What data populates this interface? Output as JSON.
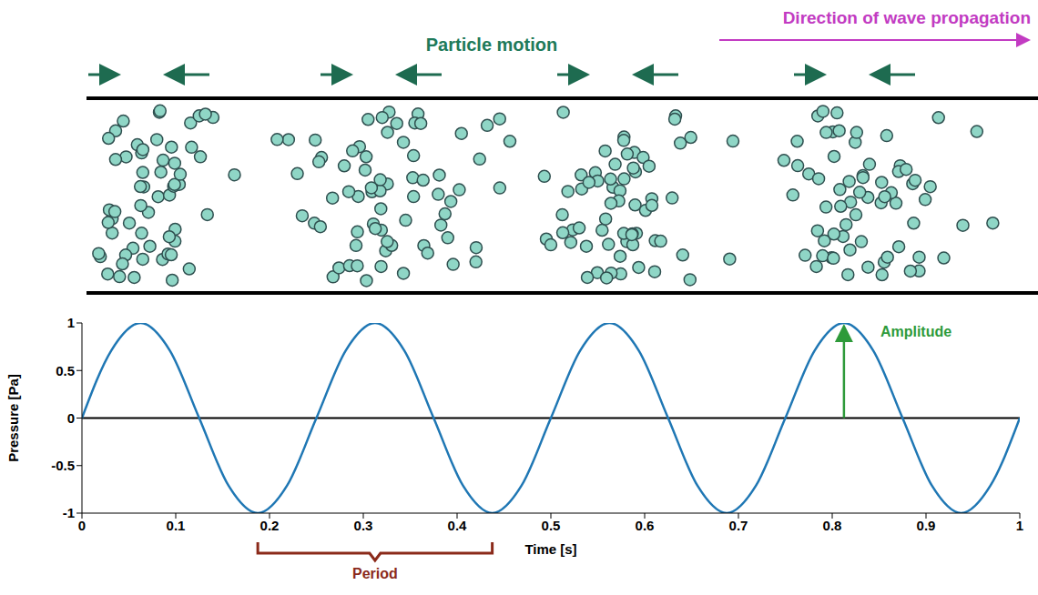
{
  "diagram": {
    "particle_motion_label": "Particle motion",
    "propagation_label": "Direction of wave propagation"
  },
  "chart_data": {
    "type": "line",
    "x_label": "Time [s]",
    "y_label": "Pressure [Pa]",
    "x": [
      0,
      0.03125,
      0.0625,
      0.09375,
      0.125,
      0.15625,
      0.1875,
      0.21875,
      0.25,
      0.28125,
      0.3125,
      0.34375,
      0.375,
      0.40625,
      0.4375,
      0.46875,
      0.5,
      0.53125,
      0.5625,
      0.59375,
      0.625,
      0.65625,
      0.6875,
      0.71875,
      0.75,
      0.78125,
      0.8125,
      0.84375,
      0.875,
      0.90625,
      0.9375,
      0.96875,
      1
    ],
    "values": [
      0,
      0.71,
      1,
      0.71,
      0,
      -0.71,
      -1,
      -0.71,
      0,
      0.71,
      1,
      0.71,
      0,
      -0.71,
      -1,
      -0.71,
      0,
      0.71,
      1,
      0.71,
      0,
      -0.71,
      -1,
      -0.71,
      0,
      0.71,
      1,
      0.71,
      0,
      -0.71,
      -1,
      -0.71,
      0
    ],
    "color": "#1f77b4",
    "xlim": [
      0,
      1
    ],
    "ylim": [
      -1,
      1
    ],
    "xticks": [
      0,
      0.1,
      0.2,
      0.3,
      0.4,
      0.5,
      0.6,
      0.7,
      0.8,
      0.9,
      1
    ],
    "yticks": [
      -1,
      -0.5,
      0,
      0.5,
      1
    ],
    "grid": false,
    "annotations": [
      {
        "text": "Amplitude",
        "x": 0.8125,
        "y_from": 0,
        "y_to": 1,
        "color": "#2e9a3a"
      },
      {
        "text": "Period",
        "x_from": 0.1875,
        "x_to": 0.4375,
        "color": "#8b2a1a"
      }
    ]
  }
}
